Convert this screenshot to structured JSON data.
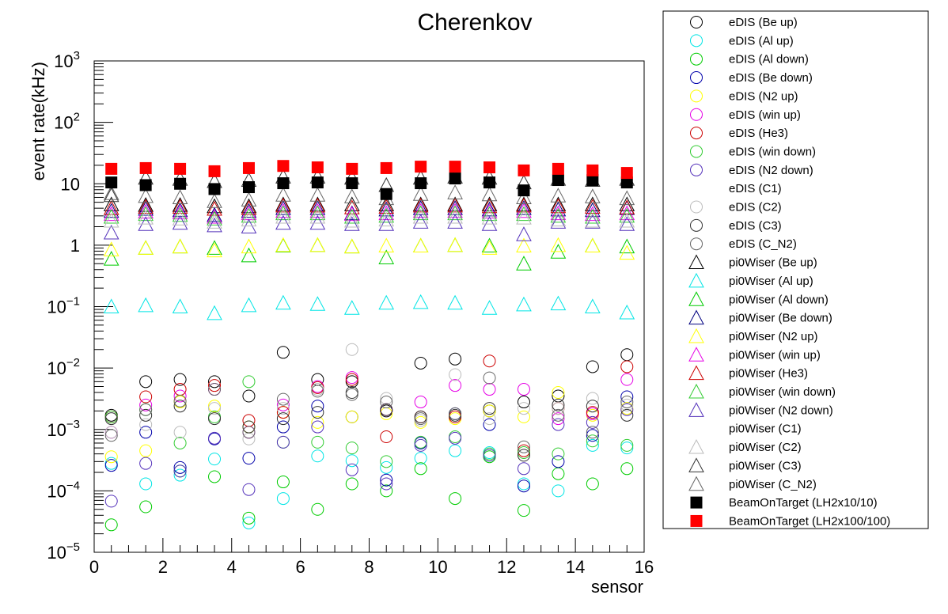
{
  "chart_data": {
    "type": "scatter",
    "title": "Cherenkov",
    "xlabel": "sensor",
    "ylabel": "event rate(kHz)",
    "xlim": [
      0,
      16
    ],
    "ylim": [
      1e-05,
      1000
    ],
    "yscale": "log",
    "x_ticks": [
      "0",
      "2",
      "4",
      "6",
      "8",
      "10",
      "12",
      "14",
      "16"
    ],
    "y_ticks": [
      {
        "value": 1e-05,
        "base": "10",
        "exp": "−5"
      },
      {
        "value": 0.0001,
        "base": "10",
        "exp": "−4"
      },
      {
        "value": 0.001,
        "base": "10",
        "exp": "−3"
      },
      {
        "value": 0.01,
        "base": "10",
        "exp": "−2"
      },
      {
        "value": 0.1,
        "base": "10",
        "exp": "−1"
      },
      {
        "value": 1,
        "base": "1",
        "exp": ""
      },
      {
        "value": 10,
        "base": "10",
        "exp": ""
      },
      {
        "value": 100,
        "base": "10",
        "exp": "2"
      },
      {
        "value": 1000,
        "base": "10",
        "exp": "3"
      }
    ],
    "legend_position": "right",
    "x": [
      0.5,
      1.5,
      2.5,
      3.5,
      4.5,
      5.5,
      6.5,
      7.5,
      8.5,
      9.5,
      10.5,
      11.5,
      12.5,
      13.5,
      14.5,
      15.5
    ],
    "series": [
      {
        "name": "eDIS (Be up)",
        "marker": "circle-open",
        "color": "#000000",
        "values": [
          0.0017,
          0.006,
          0.0065,
          0.006,
          0.0035,
          0.018,
          0.0065,
          0.006,
          0.002,
          0.012,
          0.014,
          0.002,
          0.0028,
          0.0035,
          0.0105,
          0.0165
        ]
      },
      {
        "name": "eDIS (Al up)",
        "marker": "circle-open",
        "color": "#00e5e5",
        "values": [
          0.00028,
          0.00013,
          0.00018,
          0.00033,
          3e-05,
          7.5e-05,
          0.00037,
          0.00031,
          0.00024,
          0.00034,
          0.00045,
          0.00042,
          0.00013,
          0.0001,
          0.00055,
          0.0005
        ]
      },
      {
        "name": "eDIS (Al down)",
        "marker": "circle-open",
        "color": "#00cc00",
        "values": [
          2.8e-05,
          5.5e-05,
          0.00021,
          0.00017,
          3.6e-05,
          0.00014,
          5e-05,
          0.00013,
          0.0001,
          0.00023,
          7.5e-05,
          0.00036,
          4.8e-05,
          0.00019,
          0.00013,
          0.00023
        ]
      },
      {
        "name": "eDIS (Be down)",
        "marker": "circle-open",
        "color": "#0000aa",
        "values": [
          0.00026,
          0.0009,
          0.00024,
          0.0007,
          0.00034,
          0.0011,
          0.0024,
          0.0016,
          0.00015,
          0.0006,
          0.0018,
          0.0012,
          0.00012,
          0.0003,
          0.0008,
          0.0034
        ]
      },
      {
        "name": "eDIS (N2 up)",
        "marker": "circle-open",
        "color": "#ffff00",
        "values": [
          0.00036,
          0.00045,
          0.0028,
          0.0024,
          0.0011,
          0.0019,
          0.0013,
          0.0016,
          0.0018,
          0.0013,
          0.0015,
          0.002,
          0.0016,
          0.004,
          0.0017,
          0.0022
        ]
      },
      {
        "name": "eDIS (win up)",
        "marker": "circle-open",
        "color": "#e600e6",
        "values": [
          0.0009,
          0.0025,
          0.0035,
          0.0045,
          0.0009,
          0.0025,
          0.005,
          0.007,
          0.0021,
          0.0028,
          0.0052,
          0.0045,
          0.0045,
          0.0015,
          0.0018,
          0.0065
        ]
      },
      {
        "name": "eDIS (He3)",
        "marker": "circle-open",
        "color": "#cc0000",
        "values": [
          0.0016,
          0.0034,
          0.0045,
          0.0052,
          0.0014,
          0.0019,
          0.0048,
          0.0065,
          0.00076,
          0.0016,
          0.0016,
          0.013,
          0.00045,
          0.0022,
          0.0019,
          0.0105
        ]
      },
      {
        "name": "eDIS (win down)",
        "marker": "circle-open",
        "color": "#33cc33",
        "values": [
          0.0016,
          0.0021,
          0.0006,
          0.0016,
          0.006,
          0.00062,
          0.00062,
          0.0005,
          0.0003,
          0.00062,
          0.00076,
          0.0004,
          0.00042,
          0.0004,
          0.00065,
          0.00055
        ]
      },
      {
        "name": "eDIS (N2 down)",
        "marker": "circle-open",
        "color": "#5533bb",
        "values": [
          6.8e-05,
          0.00028,
          0.00021,
          0.00072,
          0.000105,
          0.00062,
          0.0011,
          0.00022,
          0.00013,
          0.00055,
          0.00072,
          0.00038,
          0.00023,
          0.0012,
          0.0013,
          0.0021
        ]
      },
      {
        "name": "eDIS (C1)",
        "marker": "circle-open",
        "color": "#ffffff",
        "values": []
      },
      {
        "name": "eDIS (C2)",
        "marker": "circle-open",
        "color": "#bbbbbb",
        "values": [
          0.0009,
          0.0012,
          0.0009,
          0.0022,
          0.0007,
          0.0022,
          0.0045,
          0.02,
          0.0032,
          0.0014,
          0.0078,
          0.0015,
          0.0022,
          0.0022,
          0.0032,
          0.0025
        ]
      },
      {
        "name": "eDIS (C3)",
        "marker": "circle-open",
        "color": "#333333",
        "values": [
          0.0015,
          0.0017,
          0.0024,
          0.0015,
          0.0011,
          0.0015,
          0.0019,
          0.004,
          0.0021,
          0.0016,
          0.0017,
          0.0022,
          0.00038,
          0.0025,
          0.0024,
          0.0017
        ]
      },
      {
        "name": "eDIS (C_N2)",
        "marker": "circle-open",
        "color": "#666666",
        "values": [
          0.0008,
          0.0021,
          0.0029,
          0.0045,
          0.0009,
          0.0031,
          0.0042,
          0.0037,
          0.0028,
          0.0015,
          0.0018,
          0.0069,
          0.00052,
          0.0017,
          0.0009,
          0.0028
        ]
      },
      {
        "name": "pi0Wiser (Be up)",
        "marker": "triangle-open",
        "color": "#000000",
        "values": [
          4.6,
          4.5,
          4.5,
          4.3,
          4.3,
          4.6,
          4.6,
          4.6,
          4.6,
          4.6,
          4.6,
          4.6,
          4.6,
          4.6,
          4.6,
          4.6
        ]
      },
      {
        "name": "pi0Wiser (Al up)",
        "marker": "triangle-open",
        "color": "#00e5e5",
        "values": [
          0.1,
          0.105,
          0.1,
          0.078,
          0.105,
          0.115,
          0.11,
          0.095,
          0.115,
          0.118,
          0.115,
          0.095,
          0.108,
          0.112,
          0.1,
          0.08
        ]
      },
      {
        "name": "pi0Wiser (Al down)",
        "marker": "triangle-open",
        "color": "#00cc00",
        "values": [
          0.6,
          0.9,
          0.95,
          0.9,
          0.68,
          0.98,
          1.0,
          0.95,
          0.63,
          0.98,
          1.0,
          0.98,
          0.5,
          0.78,
          0.98,
          0.95
        ]
      },
      {
        "name": "pi0Wiser (Be down)",
        "marker": "triangle-open",
        "color": "#000080",
        "values": [
          3.6,
          3.9,
          3.7,
          3.1,
          3.6,
          4.0,
          4.0,
          3.3,
          3.8,
          4.0,
          4.0,
          3.8,
          4.0,
          3.8,
          3.7,
          4.0
        ]
      },
      {
        "name": "pi0Wiser (N2 up)",
        "marker": "triangle-open",
        "color": "#ffff00",
        "values": [
          0.85,
          0.9,
          0.95,
          0.82,
          0.95,
          1.0,
          1.0,
          0.95,
          0.98,
          0.98,
          1.0,
          0.9,
          0.98,
          1.0,
          0.98,
          0.75
        ]
      },
      {
        "name": "pi0Wiser (win up)",
        "marker": "triangle-open",
        "color": "#e600e6",
        "values": [
          3.2,
          3.5,
          3.4,
          2.9,
          3.3,
          3.6,
          3.6,
          3.2,
          3.3,
          3.6,
          3.6,
          3.5,
          3.6,
          3.3,
          3.2,
          3.3
        ]
      },
      {
        "name": "pi0Wiser (He3)",
        "marker": "triangle-open",
        "color": "#cc0000",
        "values": [
          4.0,
          4.2,
          4.2,
          3.9,
          4.0,
          4.4,
          4.4,
          4.1,
          4.2,
          4.4,
          4.4,
          4.3,
          4.4,
          4.3,
          4.2,
          4.1
        ]
      },
      {
        "name": "pi0Wiser (win down)",
        "marker": "triangle-open",
        "color": "#33cc33",
        "values": [
          2.9,
          3.2,
          3.1,
          2.7,
          3.0,
          3.3,
          3.3,
          2.9,
          3.0,
          3.3,
          3.3,
          3.2,
          3.2,
          3.0,
          2.9,
          3.0
        ]
      },
      {
        "name": "pi0Wiser (N2 down)",
        "marker": "triangle-open",
        "color": "#5533bb",
        "values": [
          1.6,
          2.2,
          2.3,
          2.1,
          2.0,
          2.3,
          2.3,
          2.2,
          2.2,
          2.4,
          2.4,
          2.2,
          1.5,
          2.4,
          2.4,
          2.2
        ]
      },
      {
        "name": "pi0Wiser (C1)",
        "marker": "triangle-open",
        "color": "#ffffff",
        "values": []
      },
      {
        "name": "pi0Wiser (C2)",
        "marker": "triangle-open",
        "color": "#bbbbbb",
        "values": [
          2.5,
          2.8,
          2.7,
          2.4,
          2.6,
          2.9,
          2.9,
          2.5,
          2.6,
          2.9,
          2.9,
          2.8,
          2.8,
          2.6,
          2.5,
          2.5
        ]
      },
      {
        "name": "pi0Wiser (C3)",
        "marker": "triangle-open",
        "color": "#333333",
        "values": [
          6.5,
          12.5,
          12,
          11,
          11.5,
          13,
          13,
          12.5,
          9.5,
          12.5,
          13,
          12.5,
          10.5,
          12,
          11.5,
          12
        ]
      },
      {
        "name": "pi0Wiser (C_N2)",
        "marker": "triangle-open",
        "color": "#666666",
        "values": [
          7.0,
          6.3,
          6.0,
          5.2,
          5.5,
          6.6,
          6.6,
          6.2,
          5.8,
          6.8,
          7.2,
          6.7,
          6.0,
          6.4,
          6.2,
          5.8
        ]
      },
      {
        "name": "BeamOnTarget (LH2x10/10)",
        "marker": "square-filled",
        "color": "#000000",
        "values": [
          10.5,
          9.5,
          10,
          8.2,
          8.8,
          10.2,
          10.5,
          10.2,
          6.8,
          10.2,
          12.2,
          10.5,
          7.8,
          11.5,
          11.5,
          10.5
        ]
      },
      {
        "name": "BeamOnTarget (LH2x100/100)",
        "marker": "square-filled",
        "color": "#ff0000",
        "values": [
          17.5,
          18,
          17.5,
          16,
          18,
          19.5,
          18.5,
          17.5,
          18,
          19,
          19,
          18.5,
          16.5,
          17.5,
          16.5,
          15
        ]
      }
    ]
  }
}
